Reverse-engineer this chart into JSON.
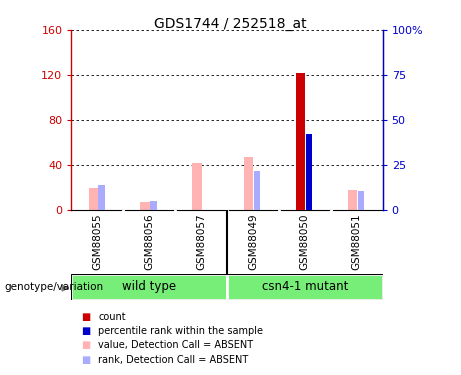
{
  "title": "GDS1744 / 252518_at",
  "samples": [
    "GSM88055",
    "GSM88056",
    "GSM88057",
    "GSM88049",
    "GSM88050",
    "GSM88051"
  ],
  "wild_type_label": "wild type",
  "mutant_label": "csn4-1 mutant",
  "value_bars": [
    20,
    7,
    42,
    47,
    0,
    18
  ],
  "rank_values": [
    22,
    8,
    0,
    35,
    0,
    17
  ],
  "count_bar": 122,
  "count_bar_idx": 4,
  "percentile_val": 42,
  "percentile_idx": 4,
  "ylim_left": [
    0,
    160
  ],
  "ylim_right": [
    0,
    100
  ],
  "yticks_left": [
    0,
    40,
    80,
    120,
    160
  ],
  "yticks_right": [
    0,
    25,
    50,
    75,
    100
  ],
  "ytick_labels_left": [
    "0",
    "40",
    "80",
    "120",
    "160"
  ],
  "ytick_labels_right": [
    "0",
    "25",
    "50",
    "75",
    "100%"
  ],
  "left_axis_color": "#cc0000",
  "right_axis_color": "#0000cc",
  "value_bar_color": "#ffb3b3",
  "rank_marker_color": "#aaaaff",
  "count_bar_color": "#cc0000",
  "percentile_marker_color": "#0000cc",
  "bg_color": "#ffffff",
  "sample_box_color": "#cccccc",
  "group_color": "#77ee77",
  "legend_items": [
    {
      "color": "#cc0000",
      "label": "count"
    },
    {
      "color": "#0000cc",
      "label": "percentile rank within the sample"
    },
    {
      "color": "#ffb3b3",
      "label": "value, Detection Call = ABSENT"
    },
    {
      "color": "#aaaaff",
      "label": "rank, Detection Call = ABSENT"
    }
  ]
}
